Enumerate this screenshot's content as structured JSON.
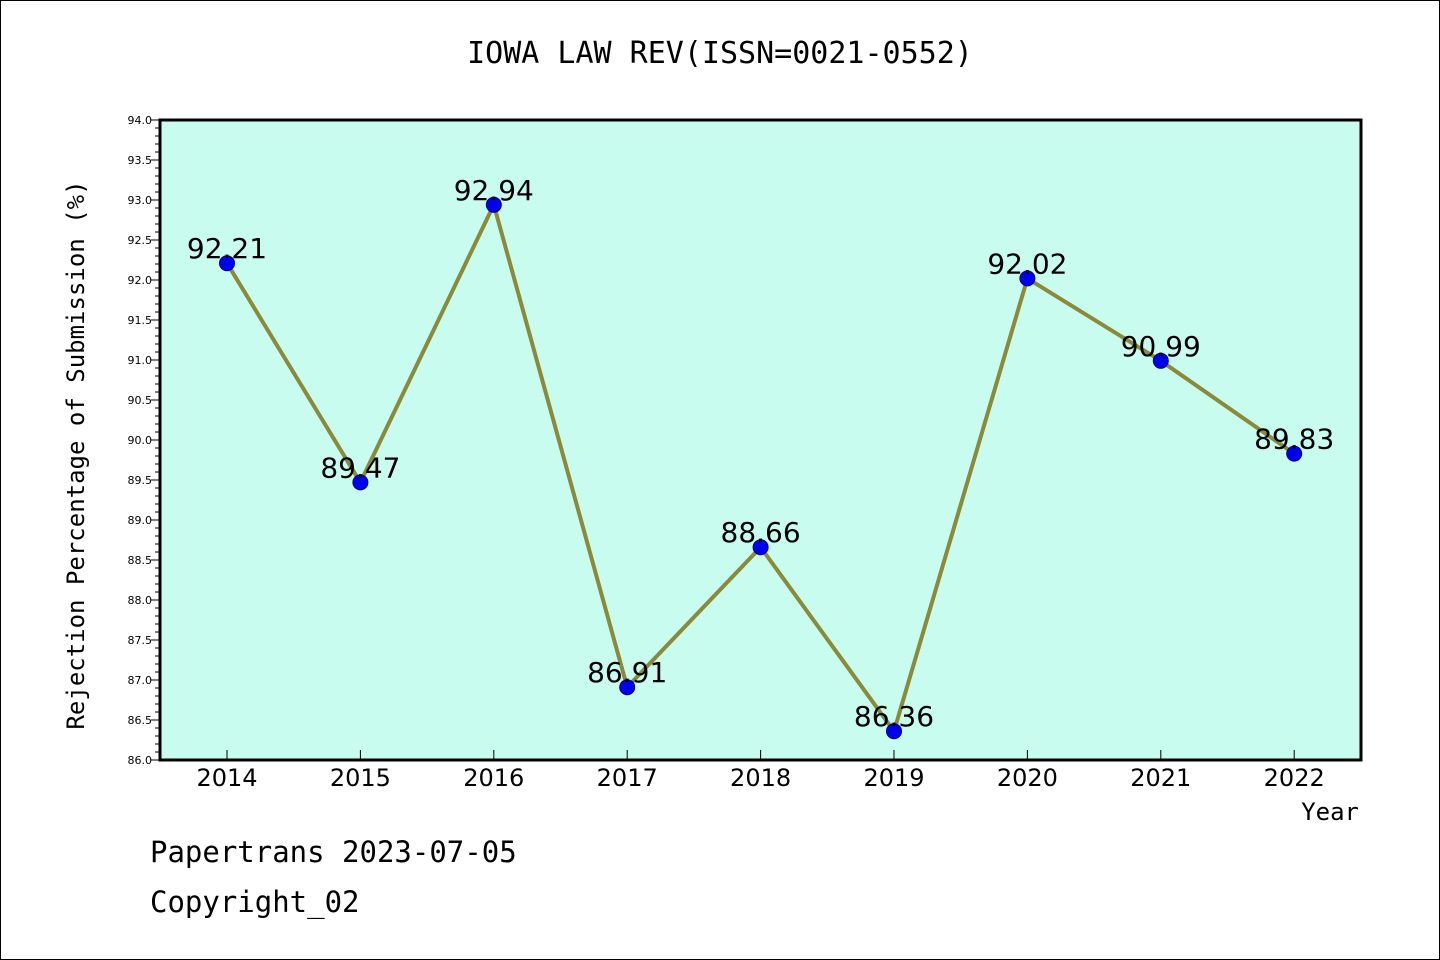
{
  "chart_data": {
    "type": "line",
    "title": "IOWA LAW REV(ISSN=0021-0552)",
    "xlabel": "Year",
    "ylabel": "Rejection Percentage of Submission (%)",
    "categories": [
      "2014",
      "2015",
      "2016",
      "2017",
      "2018",
      "2019",
      "2020",
      "2021",
      "2022"
    ],
    "values": [
      92.21,
      89.47,
      92.94,
      86.91,
      88.66,
      86.36,
      92.02,
      90.99,
      89.83
    ],
    "data_labels": [
      "92.21",
      "89.47",
      "92.94",
      "86.91",
      "88.66",
      "86.36",
      "92.02",
      "90.99",
      "89.83"
    ],
    "ylim": [
      86.0,
      94.0
    ],
    "yticks": [
      "86.0",
      "86.5",
      "87.0",
      "87.5",
      "88.0",
      "88.5",
      "89.0",
      "89.5",
      "90.0",
      "90.5",
      "91.0",
      "91.5",
      "92.0",
      "92.5",
      "93.0",
      "93.5",
      "94.0"
    ],
    "grid": false,
    "colors": {
      "plot_background": "#c8fcee",
      "line": "#8a8a3a",
      "marker": "#0000ee",
      "marker_edge": "#000080"
    }
  },
  "footer": {
    "line1": "Papertrans 2023-07-05",
    "line2": "Copyright_02"
  }
}
